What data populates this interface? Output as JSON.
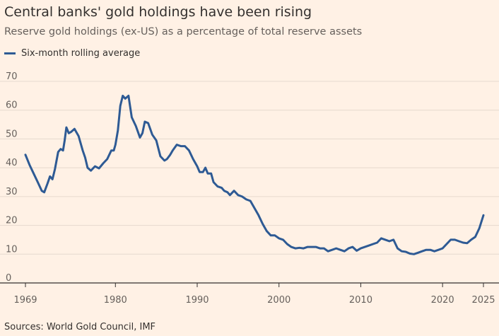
{
  "header": {
    "title": "Central banks' gold holdings have been rising",
    "subtitle": "Reserve gold holdings (ex-US) as a percentage of total reserve assets"
  },
  "legend": {
    "items": [
      {
        "label": "Six-month rolling average",
        "color": "#2e5a94"
      }
    ]
  },
  "footer": {
    "source": "Sources: World Gold Council, IMF"
  },
  "colors": {
    "background": "#fff1e5",
    "gridline": "#e6d9ce",
    "line": "#2e5a94",
    "baseline": "#33302e"
  },
  "chart_data": {
    "type": "line",
    "title": "Central banks' gold holdings have been rising",
    "subtitle": "Reserve gold holdings (ex-US) as a percentage of total reserve assets",
    "xlabel": "",
    "ylabel": "",
    "xlim": [
      1969,
      2025
    ],
    "ylim": [
      0,
      70
    ],
    "x_ticks": [
      1969,
      1980,
      1990,
      2000,
      2010,
      2020,
      2025
    ],
    "y_ticks": [
      0,
      10,
      20,
      30,
      40,
      50,
      60,
      70
    ],
    "grid": true,
    "legend_position": "top-left",
    "series": [
      {
        "name": "Six-month rolling average",
        "color": "#2e5a94",
        "x": [
          1969.0,
          1969.5,
          1970.0,
          1970.5,
          1971.0,
          1971.3,
          1971.7,
          1972.0,
          1972.3,
          1972.6,
          1973.0,
          1973.3,
          1973.6,
          1973.8,
          1974.0,
          1974.3,
          1974.6,
          1975.0,
          1975.5,
          1976.0,
          1976.3,
          1976.6,
          1977.0,
          1977.5,
          1978.0,
          1978.5,
          1979.0,
          1979.5,
          1979.8,
          1980.0,
          1980.3,
          1980.6,
          1980.9,
          1981.2,
          1981.6,
          1982.0,
          1982.5,
          1983.0,
          1983.3,
          1983.6,
          1984.0,
          1984.5,
          1985.0,
          1985.5,
          1986.0,
          1986.3,
          1986.7,
          1987.0,
          1987.5,
          1988.0,
          1988.5,
          1989.0,
          1989.5,
          1990.0,
          1990.3,
          1990.7,
          1991.0,
          1991.3,
          1991.7,
          1992.0,
          1992.5,
          1993.0,
          1993.3,
          1993.7,
          1994.0,
          1994.5,
          1995.0,
          1995.5,
          1996.0,
          1996.5,
          1997.0,
          1997.5,
          1998.0,
          1998.5,
          1999.0,
          1999.5,
          2000.0,
          2000.5,
          2001.0,
          2001.5,
          2002.0,
          2002.5,
          2003.0,
          2003.5,
          2004.0,
          2004.5,
          2005.0,
          2005.5,
          2006.0,
          2006.5,
          2007.0,
          2007.5,
          2008.0,
          2008.5,
          2009.0,
          2009.5,
          2010.0,
          2010.5,
          2011.0,
          2011.5,
          2012.0,
          2012.5,
          2013.0,
          2013.5,
          2014.0,
          2014.5,
          2015.0,
          2015.5,
          2016.0,
          2016.5,
          2017.0,
          2017.5,
          2018.0,
          2018.5,
          2019.0,
          2019.5,
          2020.0,
          2020.5,
          2021.0,
          2021.5,
          2022.0,
          2022.5,
          2023.0,
          2023.5,
          2024.0,
          2024.5,
          2025.0
        ],
        "y": [
          44.5,
          41.0,
          38.0,
          35.0,
          32.0,
          31.5,
          34.5,
          37.0,
          36.0,
          39.5,
          45.5,
          46.5,
          46.0,
          49.5,
          54.0,
          52.0,
          52.5,
          53.5,
          51.0,
          46.0,
          43.5,
          40.0,
          39.0,
          40.5,
          39.8,
          41.5,
          43.0,
          46.0,
          46.0,
          48.0,
          53.0,
          61.5,
          65.0,
          64.0,
          65.0,
          57.5,
          54.5,
          50.5,
          52.0,
          56.0,
          55.5,
          51.5,
          49.5,
          44.0,
          42.5,
          43.0,
          44.5,
          46.0,
          48.0,
          47.5,
          47.5,
          46.0,
          43.0,
          40.5,
          38.5,
          38.5,
          40.0,
          38.0,
          38.0,
          35.0,
          33.5,
          33.0,
          32.0,
          31.5,
          30.5,
          32.0,
          30.5,
          30.0,
          29.0,
          28.5,
          26.0,
          23.5,
          20.5,
          18.0,
          16.5,
          16.5,
          15.5,
          15.0,
          13.5,
          12.5,
          12.0,
          12.2,
          12.0,
          12.5,
          12.5,
          12.5,
          12.0,
          12.0,
          11.0,
          11.5,
          12.0,
          11.5,
          11.0,
          12.0,
          12.5,
          11.2,
          12.0,
          12.5,
          13.0,
          13.5,
          14.0,
          15.5,
          15.0,
          14.5,
          15.0,
          12.0,
          11.0,
          10.8,
          10.2,
          10.0,
          10.5,
          11.0,
          11.5,
          11.5,
          11.0,
          11.5,
          12.0,
          13.5,
          15.0,
          15.0,
          14.5,
          14.0,
          13.8,
          15.0,
          16.0,
          19.0,
          23.5
        ]
      }
    ]
  }
}
